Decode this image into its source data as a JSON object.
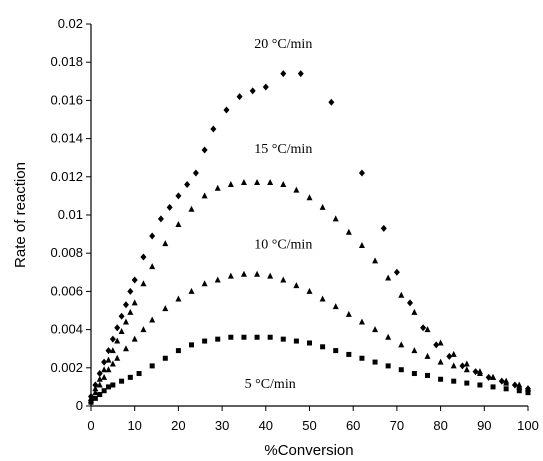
{
  "chart_data": {
    "type": "scatter",
    "title": "",
    "xlabel": "%Conversion",
    "ylabel": "Rate of reaction",
    "xlim": [
      0,
      100
    ],
    "ylim": [
      0,
      0.02
    ],
    "x_ticks": [
      "0",
      "10",
      "20",
      "30",
      "40",
      "50",
      "60",
      "70",
      "80",
      "90",
      "100"
    ],
    "y_ticks": [
      "0",
      "0.002",
      "0.004",
      "0.006",
      "0.008",
      "0.01",
      "0.012",
      "0.014",
      "0.016",
      "0.018",
      "0.02"
    ],
    "grid": false,
    "series": [
      {
        "name": "5 °C/min",
        "marker": "square",
        "x": [
          0,
          1,
          2,
          3,
          4,
          5,
          7,
          9,
          11,
          14,
          17,
          20,
          23,
          26,
          29,
          32,
          35,
          38,
          41,
          44,
          47,
          50,
          53,
          56,
          59,
          62,
          65,
          68,
          71,
          74,
          77,
          80,
          83,
          86,
          89,
          92,
          95,
          98,
          100
        ],
        "y": [
          0.0002,
          0.0004,
          0.0006,
          0.0008,
          0.001,
          0.0011,
          0.0013,
          0.0015,
          0.0017,
          0.0021,
          0.0025,
          0.0029,
          0.0032,
          0.0034,
          0.0035,
          0.0036,
          0.0036,
          0.0036,
          0.0036,
          0.0035,
          0.0034,
          0.0033,
          0.0031,
          0.0029,
          0.0027,
          0.0025,
          0.0023,
          0.0021,
          0.0019,
          0.0017,
          0.0016,
          0.0014,
          0.0013,
          0.0012,
          0.0011,
          0.001,
          0.0009,
          0.0008,
          0.0007
        ]
      },
      {
        "name": "10 °C/min",
        "marker": "triangle",
        "x": [
          0,
          1,
          2,
          3,
          4,
          5,
          6,
          8,
          10,
          12,
          14,
          17,
          20,
          23,
          26,
          29,
          32,
          35,
          38,
          41,
          44,
          47,
          50,
          53,
          56,
          59,
          62,
          65,
          68,
          71,
          74,
          77,
          80,
          83,
          86,
          89,
          92,
          95,
          98,
          100
        ],
        "y": [
          0.0003,
          0.0007,
          0.0011,
          0.0015,
          0.0019,
          0.0022,
          0.0025,
          0.003,
          0.0035,
          0.004,
          0.0045,
          0.0051,
          0.0056,
          0.006,
          0.0064,
          0.0066,
          0.0068,
          0.0069,
          0.0069,
          0.0068,
          0.0066,
          0.0063,
          0.006,
          0.0056,
          0.0052,
          0.0048,
          0.0044,
          0.004,
          0.0036,
          0.0032,
          0.0029,
          0.0026,
          0.0023,
          0.0021,
          0.0019,
          0.0017,
          0.0015,
          0.0013,
          0.0011,
          0.0009
        ]
      },
      {
        "name": "15 °C/min",
        "marker": "triangle",
        "x": [
          0,
          1,
          2,
          3,
          4,
          5,
          6,
          7,
          8,
          9,
          10,
          12,
          14,
          17,
          20,
          23,
          26,
          29,
          32,
          35,
          38,
          41,
          44,
          47,
          50,
          53,
          56,
          59,
          62,
          65,
          68,
          71,
          74,
          77,
          80,
          83,
          86,
          89,
          92,
          95,
          98,
          100
        ],
        "y": [
          0.0004,
          0.0009,
          0.0014,
          0.0019,
          0.0024,
          0.0029,
          0.0034,
          0.0039,
          0.0044,
          0.0049,
          0.0054,
          0.0064,
          0.0073,
          0.0085,
          0.0095,
          0.0103,
          0.011,
          0.0114,
          0.0116,
          0.0117,
          0.0117,
          0.0117,
          0.0116,
          0.0113,
          0.0109,
          0.0104,
          0.0098,
          0.0091,
          0.0084,
          0.0076,
          0.0067,
          0.0058,
          0.0049,
          0.004,
          0.0033,
          0.0027,
          0.0022,
          0.0018,
          0.0015,
          0.0012,
          0.001,
          0.0009
        ]
      },
      {
        "name": "20 °C/min",
        "marker": "diamond",
        "x": [
          0,
          1,
          2,
          3,
          4,
          5,
          6,
          7,
          8,
          9,
          10,
          12,
          14,
          16,
          18,
          20,
          22,
          24,
          26,
          28,
          31,
          34,
          37,
          40,
          44,
          48,
          55,
          62,
          67,
          70,
          73,
          76,
          79,
          82,
          85,
          88,
          91,
          94,
          97,
          100
        ],
        "y": [
          0.0005,
          0.0011,
          0.0017,
          0.0023,
          0.0029,
          0.0035,
          0.0041,
          0.0047,
          0.0053,
          0.006,
          0.0066,
          0.0078,
          0.0089,
          0.0098,
          0.0104,
          0.011,
          0.0116,
          0.0122,
          0.0134,
          0.0145,
          0.0155,
          0.0162,
          0.0165,
          0.0167,
          0.0174,
          0.0174,
          0.0159,
          0.0122,
          0.0093,
          0.007,
          0.0054,
          0.0041,
          0.0032,
          0.0026,
          0.0021,
          0.0018,
          0.0015,
          0.0013,
          0.0011,
          0.0009
        ]
      }
    ],
    "annotations": [
      {
        "text": "20 °C/min",
        "x": 44,
        "y": 0.019
      },
      {
        "text": "15 °C/min",
        "x": 44,
        "y": 0.0135
      },
      {
        "text": "10 °C/min",
        "x": 44,
        "y": 0.0085
      },
      {
        "text": "5 °C/min",
        "x": 41,
        "y": 0.0012
      }
    ]
  }
}
